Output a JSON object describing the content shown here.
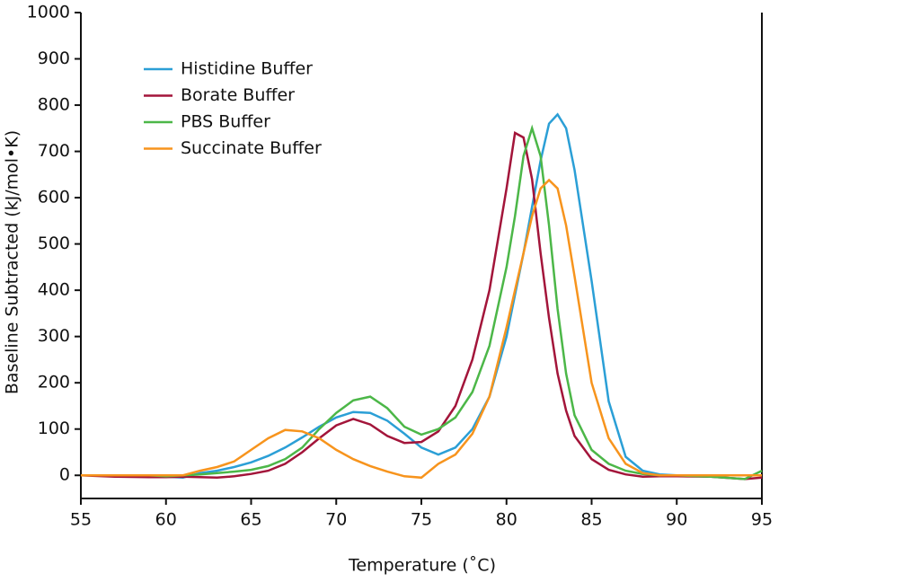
{
  "chart_data": {
    "type": "line",
    "xlabel": "Temperature (˚C)",
    "ylabel": "Baseline Subtracted (kJ/mol•K)",
    "x": [
      55,
      57,
      59,
      60,
      61,
      62,
      63,
      64,
      65,
      66,
      67,
      68,
      69,
      70,
      71,
      72,
      73,
      74,
      75,
      76,
      77,
      78,
      79,
      80,
      80.5,
      81,
      81.5,
      82,
      82.5,
      83,
      83.5,
      84,
      85,
      86,
      87,
      88,
      89,
      90,
      92,
      94,
      95
    ],
    "series": [
      {
        "name": "Histidine Buffer",
        "color": "#2b9fd6",
        "values": [
          0,
          0,
          0,
          -3,
          -5,
          5,
          10,
          18,
          28,
          42,
          60,
          82,
          105,
          125,
          137,
          135,
          118,
          90,
          60,
          45,
          60,
          100,
          170,
          300,
          390,
          480,
          580,
          680,
          760,
          780,
          750,
          660,
          420,
          160,
          40,
          10,
          2,
          0,
          0,
          0,
          0
        ]
      },
      {
        "name": "Borate Buffer",
        "color": "#a3153a",
        "values": [
          0,
          -3,
          -4,
          -4,
          -3,
          -4,
          -5,
          -2,
          3,
          10,
          25,
          50,
          80,
          108,
          122,
          110,
          85,
          70,
          72,
          95,
          150,
          250,
          400,
          620,
          740,
          730,
          640,
          480,
          340,
          220,
          140,
          85,
          35,
          12,
          2,
          -3,
          -2,
          -2,
          -3,
          -8,
          -5
        ]
      },
      {
        "name": "PBS Buffer",
        "color": "#4cb748",
        "values": [
          0,
          0,
          0,
          -2,
          0,
          2,
          5,
          8,
          12,
          20,
          35,
          60,
          100,
          135,
          162,
          170,
          145,
          105,
          88,
          100,
          125,
          180,
          280,
          450,
          560,
          690,
          750,
          690,
          540,
          360,
          220,
          130,
          55,
          25,
          10,
          3,
          0,
          0,
          -3,
          -8,
          10
        ]
      },
      {
        "name": "Succinate Buffer",
        "color": "#f7941d",
        "values": [
          0,
          0,
          0,
          0,
          0,
          10,
          18,
          30,
          55,
          80,
          98,
          95,
          80,
          55,
          35,
          20,
          8,
          -2,
          -5,
          25,
          45,
          90,
          170,
          320,
          400,
          480,
          560,
          620,
          638,
          620,
          540,
          430,
          200,
          80,
          25,
          5,
          0,
          0,
          0,
          0,
          0
        ]
      }
    ],
    "xlim": [
      55,
      95
    ],
    "xticks": [
      55,
      60,
      65,
      70,
      75,
      80,
      85,
      90,
      95
    ],
    "ylim": [
      -50,
      1000
    ],
    "yticks": [
      0,
      100,
      200,
      300,
      400,
      500,
      600,
      700,
      800,
      900,
      1000
    ],
    "legend": "upper left"
  }
}
